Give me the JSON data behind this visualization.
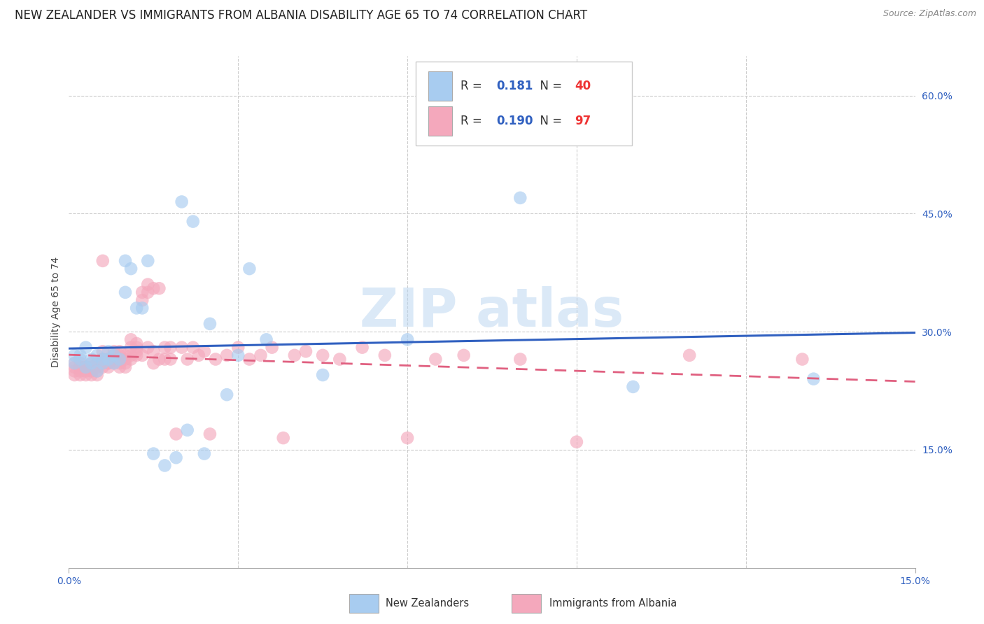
{
  "title": "NEW ZEALANDER VS IMMIGRANTS FROM ALBANIA DISABILITY AGE 65 TO 74 CORRELATION CHART",
  "source": "Source: ZipAtlas.com",
  "ylabel": "Disability Age 65 to 74",
  "xlim": [
    0.0,
    0.15
  ],
  "ylim": [
    0.0,
    0.65
  ],
  "ytick_labels": [
    "15.0%",
    "30.0%",
    "45.0%",
    "60.0%"
  ],
  "ytick_vals": [
    0.15,
    0.3,
    0.45,
    0.6
  ],
  "xtick_vals": [
    0.0,
    0.15
  ],
  "xtick_labels": [
    "0.0%",
    "15.0%"
  ],
  "xgrid_vals": [
    0.03,
    0.06,
    0.09,
    0.12
  ],
  "r_nz": 0.181,
  "n_nz": 40,
  "r_alb": 0.19,
  "n_alb": 97,
  "color_nz": "#A8CCF0",
  "color_alb": "#F4A8BC",
  "color_nz_line": "#3060C0",
  "color_alb_line": "#E06080",
  "legend_label_nz": "New Zealanders",
  "legend_label_alb": "Immigrants from Albania",
  "watermark": "ZIP atlas",
  "title_fontsize": 12,
  "axis_label_fontsize": 10,
  "tick_label_fontsize": 10,
  "legend_text_color": "#3060C0",
  "nz_x": [
    0.001,
    0.001,
    0.002,
    0.002,
    0.003,
    0.003,
    0.004,
    0.004,
    0.005,
    0.005,
    0.006,
    0.006,
    0.007,
    0.007,
    0.008,
    0.008,
    0.009,
    0.01,
    0.01,
    0.011,
    0.012,
    0.013,
    0.014,
    0.015,
    0.017,
    0.019,
    0.021,
    0.024,
    0.028,
    0.032,
    0.02,
    0.022,
    0.025,
    0.03,
    0.035,
    0.045,
    0.06,
    0.08,
    0.1,
    0.132
  ],
  "nz_y": [
    0.27,
    0.26,
    0.27,
    0.265,
    0.28,
    0.255,
    0.265,
    0.26,
    0.27,
    0.25,
    0.265,
    0.26,
    0.275,
    0.265,
    0.27,
    0.26,
    0.265,
    0.39,
    0.35,
    0.38,
    0.33,
    0.33,
    0.39,
    0.145,
    0.13,
    0.14,
    0.175,
    0.145,
    0.22,
    0.38,
    0.465,
    0.44,
    0.31,
    0.27,
    0.29,
    0.245,
    0.29,
    0.47,
    0.23,
    0.24
  ],
  "alb_x": [
    0.001,
    0.001,
    0.001,
    0.001,
    0.002,
    0.002,
    0.002,
    0.002,
    0.002,
    0.003,
    0.003,
    0.003,
    0.003,
    0.004,
    0.004,
    0.004,
    0.004,
    0.004,
    0.005,
    0.005,
    0.005,
    0.005,
    0.005,
    0.006,
    0.006,
    0.006,
    0.006,
    0.006,
    0.006,
    0.007,
    0.007,
    0.007,
    0.007,
    0.007,
    0.008,
    0.008,
    0.008,
    0.008,
    0.009,
    0.009,
    0.009,
    0.009,
    0.009,
    0.01,
    0.01,
    0.01,
    0.01,
    0.011,
    0.011,
    0.011,
    0.011,
    0.012,
    0.012,
    0.012,
    0.012,
    0.013,
    0.013,
    0.013,
    0.014,
    0.014,
    0.014,
    0.015,
    0.015,
    0.015,
    0.016,
    0.016,
    0.017,
    0.017,
    0.018,
    0.018,
    0.019,
    0.02,
    0.021,
    0.022,
    0.023,
    0.024,
    0.025,
    0.026,
    0.028,
    0.03,
    0.032,
    0.034,
    0.036,
    0.038,
    0.04,
    0.042,
    0.045,
    0.048,
    0.052,
    0.056,
    0.06,
    0.065,
    0.07,
    0.08,
    0.09,
    0.11,
    0.13
  ],
  "alb_y": [
    0.245,
    0.255,
    0.26,
    0.25,
    0.255,
    0.25,
    0.245,
    0.255,
    0.26,
    0.255,
    0.25,
    0.245,
    0.255,
    0.255,
    0.26,
    0.25,
    0.245,
    0.255,
    0.26,
    0.255,
    0.25,
    0.245,
    0.26,
    0.39,
    0.265,
    0.275,
    0.265,
    0.26,
    0.255,
    0.265,
    0.26,
    0.255,
    0.265,
    0.26,
    0.27,
    0.275,
    0.265,
    0.26,
    0.265,
    0.275,
    0.27,
    0.26,
    0.255,
    0.265,
    0.26,
    0.255,
    0.27,
    0.29,
    0.28,
    0.27,
    0.265,
    0.28,
    0.27,
    0.285,
    0.275,
    0.34,
    0.35,
    0.27,
    0.36,
    0.35,
    0.28,
    0.26,
    0.275,
    0.355,
    0.265,
    0.355,
    0.28,
    0.265,
    0.28,
    0.265,
    0.17,
    0.28,
    0.265,
    0.28,
    0.27,
    0.275,
    0.17,
    0.265,
    0.27,
    0.28,
    0.265,
    0.27,
    0.28,
    0.165,
    0.27,
    0.275,
    0.27,
    0.265,
    0.28,
    0.27,
    0.165,
    0.265,
    0.27,
    0.265,
    0.16,
    0.27,
    0.265
  ]
}
